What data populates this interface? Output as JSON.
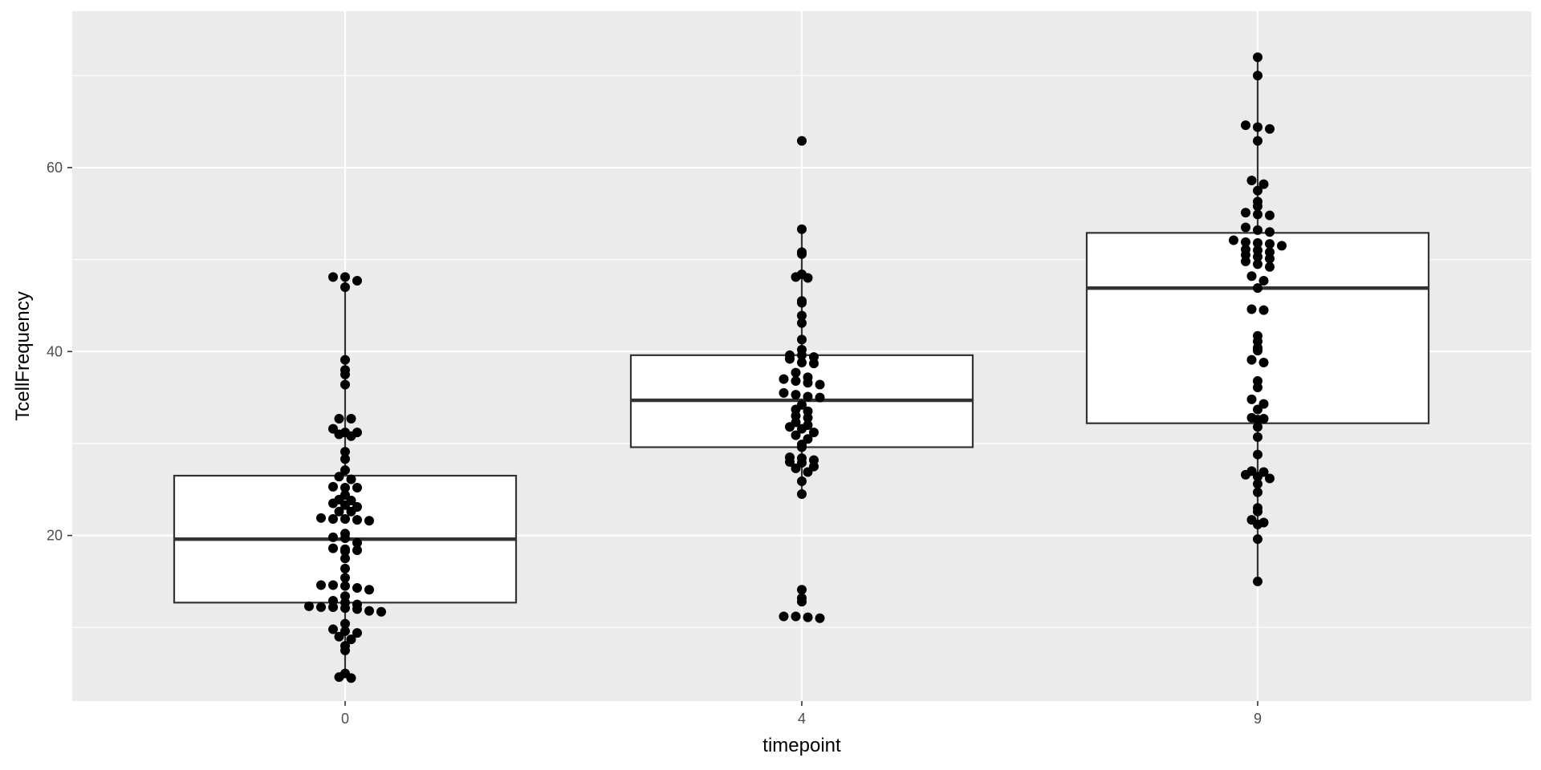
{
  "chart_data": {
    "type": "boxplot",
    "xlabel": "timepoint",
    "ylabel": "TcellFrequency",
    "categories": [
      "0",
      "4",
      "9"
    ],
    "ylim": [
      2,
      77
    ],
    "y_ticks": [
      20,
      40,
      60
    ],
    "grid": true,
    "boxes": [
      {
        "category": "0",
        "lower_whisker": 4.5,
        "q1": 12.7,
        "median": 19.6,
        "q3": 26.5,
        "upper_whisker": 48.1
      },
      {
        "category": "4",
        "lower_whisker": 24.5,
        "q1": 29.6,
        "median": 34.7,
        "q3": 39.6,
        "upper_whisker": 53.3
      },
      {
        "category": "9",
        "lower_whisker": 15.0,
        "q1": 32.2,
        "median": 46.9,
        "q3": 52.9,
        "upper_whisker": 72.0
      }
    ],
    "points": [
      {
        "category": "0",
        "values": [
          48.1,
          48.1,
          47.7,
          47.0,
          39.1,
          38.0,
          37.5,
          36.4,
          32.7,
          32.7,
          31.6,
          31.2,
          31.2,
          31.0,
          30.8,
          29.1,
          28.3,
          27.1,
          26.4,
          26.1,
          25.3,
          25.2,
          25.2,
          24.4,
          23.9,
          23.8,
          23.5,
          23.3,
          23.1,
          22.6,
          22.6,
          21.9,
          21.8,
          21.8,
          21.7,
          21.6,
          20.2,
          19.8,
          19.7,
          19.2,
          18.6,
          18.5,
          18.4,
          18.3,
          17.5,
          16.4,
          15.4,
          14.6,
          14.6,
          14.5,
          14.3,
          14.1,
          13.4,
          12.9,
          12.7,
          12.5,
          12.3,
          12.2,
          12.2,
          12.1,
          12.0,
          11.8,
          11.7,
          10.4,
          9.8,
          9.6,
          9.4,
          9.0,
          8.7,
          8.0,
          7.5,
          5.0,
          4.6,
          4.5
        ]
      },
      {
        "category": "4",
        "values": [
          62.9,
          53.3,
          50.8,
          50.6,
          48.4,
          48.1,
          48.0,
          45.5,
          45.3,
          43.9,
          43.1,
          41.3,
          40.2,
          39.6,
          39.6,
          39.4,
          39.2,
          38.8,
          38.7,
          37.7,
          37.2,
          37.0,
          36.8,
          36.6,
          36.4,
          35.5,
          35.3,
          35.1,
          35.0,
          34.2,
          33.7,
          33.5,
          33.0,
          32.8,
          32.3,
          32.0,
          31.8,
          31.6,
          31.2,
          30.9,
          30.5,
          29.9,
          29.6,
          28.5,
          28.4,
          28.2,
          28.0,
          27.9,
          27.5,
          27.3,
          26.9,
          25.9,
          24.5,
          14.1,
          13.2,
          12.8,
          11.2,
          11.2,
          11.1,
          11.0
        ]
      },
      {
        "category": "9",
        "values": [
          72.0,
          70.0,
          64.6,
          64.4,
          64.2,
          62.9,
          58.6,
          58.2,
          57.5,
          56.3,
          55.8,
          55.1,
          54.9,
          54.8,
          53.5,
          53.2,
          53.0,
          52.1,
          51.9,
          51.8,
          51.7,
          51.5,
          51.1,
          51.0,
          50.8,
          50.5,
          50.3,
          50.1,
          49.8,
          49.5,
          49.2,
          48.2,
          47.7,
          46.9,
          44.6,
          44.5,
          41.7,
          41.1,
          40.4,
          40.1,
          39.1,
          38.8,
          36.8,
          36.1,
          34.8,
          34.3,
          33.7,
          32.8,
          32.7,
          32.6,
          31.8,
          30.7,
          28.8,
          27.0,
          26.9,
          26.6,
          26.4,
          26.2,
          25.6,
          24.7,
          23.0,
          22.6,
          21.7,
          21.4,
          21.2,
          19.6,
          15.0
        ]
      }
    ]
  }
}
